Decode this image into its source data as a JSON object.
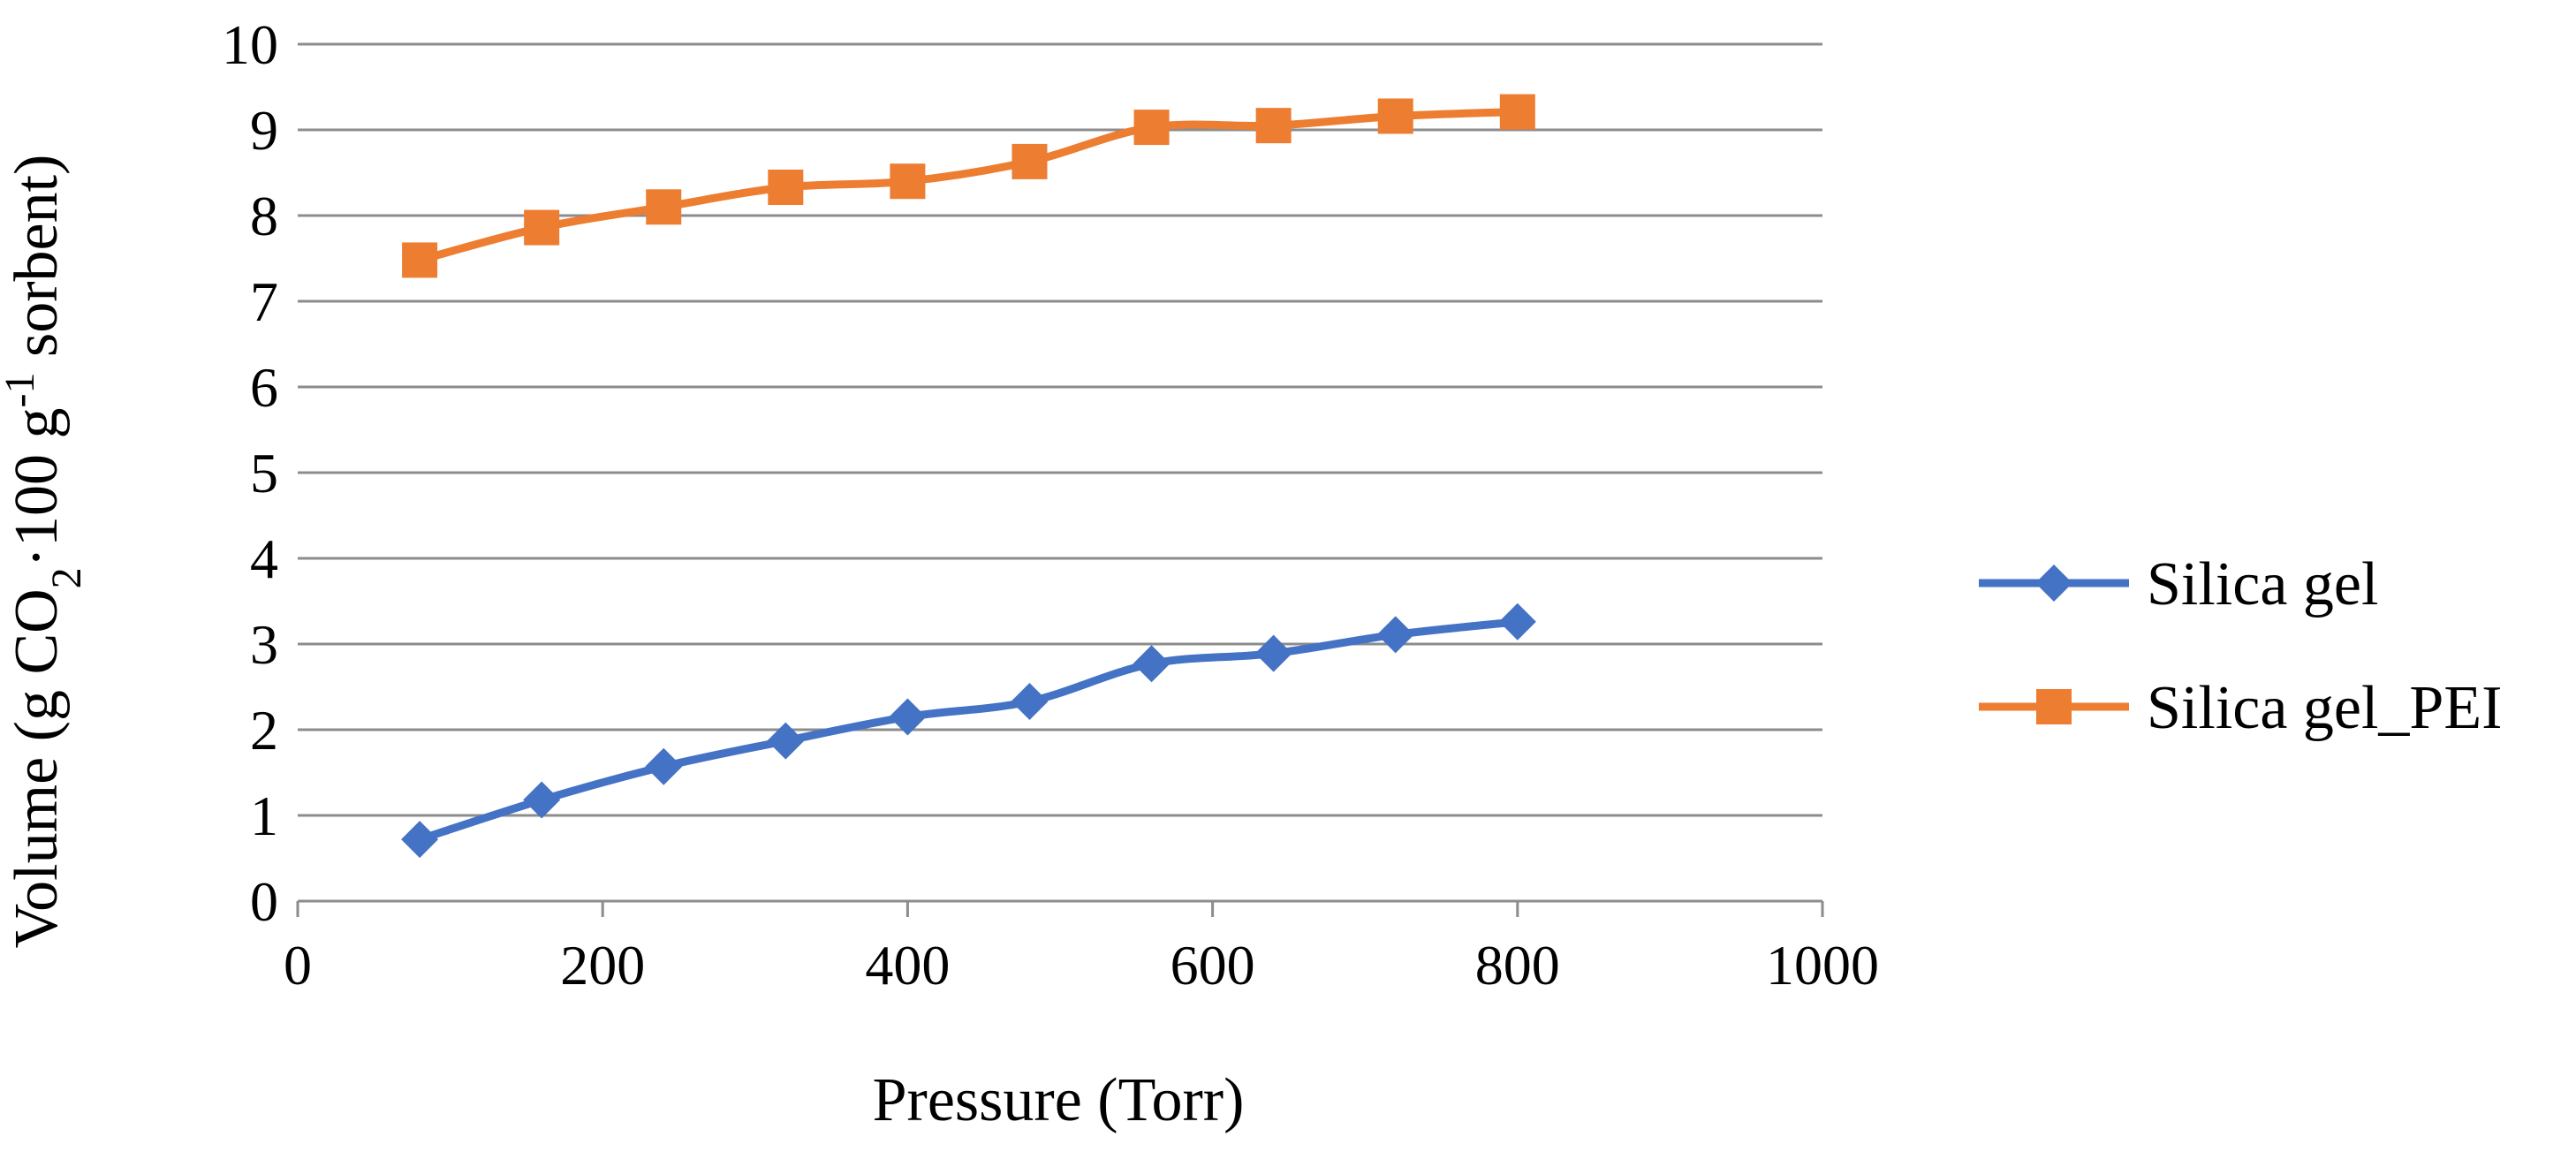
{
  "chart_data": {
    "type": "line",
    "title": "",
    "xlabel": "Pressure (Torr)",
    "ylabel": {
      "prefix": "Volume (g CO",
      "sub": "2",
      "middle": "·100 g",
      "sup": "-1",
      "suffix": " sorbent)"
    },
    "xlim": [
      0,
      1000
    ],
    "ylim": [
      0,
      10
    ],
    "xticks": [
      0,
      200,
      400,
      600,
      800,
      1000
    ],
    "yticks": [
      0,
      1,
      2,
      3,
      4,
      5,
      6,
      7,
      8,
      9,
      10
    ],
    "grid": "horizontal",
    "legend_position": "right",
    "x": [
      80,
      160,
      240,
      320,
      400,
      480,
      560,
      640,
      720,
      800
    ],
    "series": [
      {
        "name": "Silica gel",
        "color": "#4472C4",
        "marker": "diamond",
        "values": [
          0.72,
          1.18,
          1.57,
          1.87,
          2.15,
          2.33,
          2.77,
          2.89,
          3.11,
          3.26
        ]
      },
      {
        "name": "Silica gel_PEI",
        "color": "#ED7D31",
        "marker": "square",
        "values": [
          7.48,
          7.86,
          8.1,
          8.33,
          8.4,
          8.63,
          9.03,
          9.05,
          9.16,
          9.21
        ]
      }
    ]
  }
}
